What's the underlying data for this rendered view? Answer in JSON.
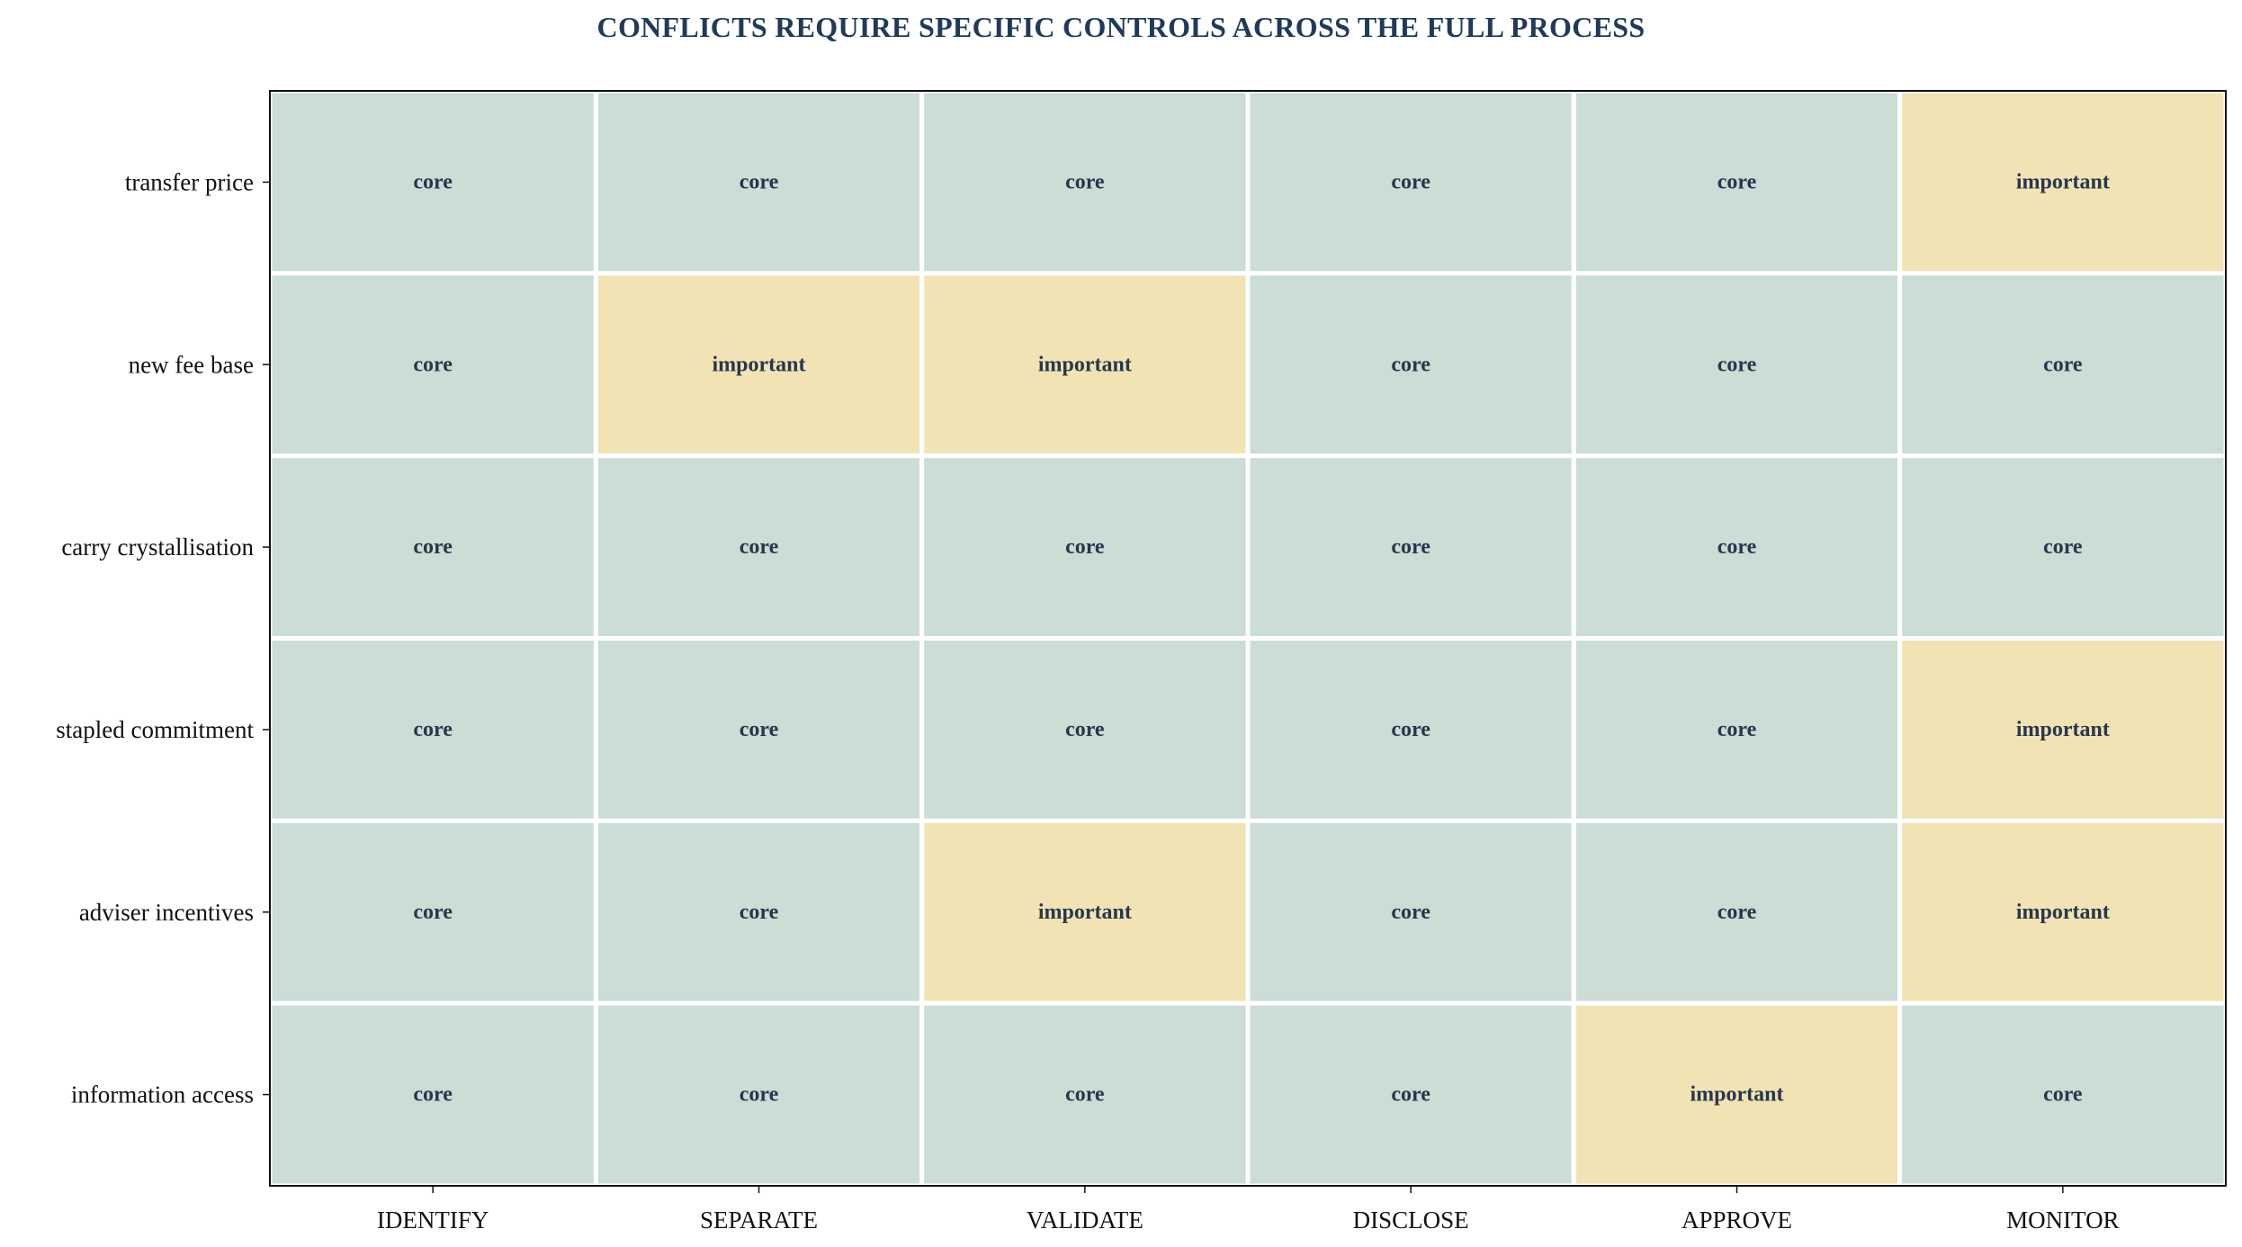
{
  "chart_data": {
    "type": "heatmap",
    "title": "CONFLICTS REQUIRE SPECIFIC CONTROLS ACROSS THE FULL PROCESS",
    "xlabel": "",
    "ylabel": "",
    "columns": [
      "IDENTIFY",
      "SEPARATE",
      "VALIDATE",
      "DISCLOSE",
      "APPROVE",
      "MONITOR"
    ],
    "rows": [
      "transfer price",
      "new fee base",
      "carry crystallisation",
      "stapled commitment",
      "adviser incentives",
      "information access"
    ],
    "values": [
      [
        "core",
        "core",
        "core",
        "core",
        "core",
        "important"
      ],
      [
        "core",
        "important",
        "important",
        "core",
        "core",
        "core"
      ],
      [
        "core",
        "core",
        "core",
        "core",
        "core",
        "core"
      ],
      [
        "core",
        "core",
        "core",
        "core",
        "core",
        "important"
      ],
      [
        "core",
        "core",
        "important",
        "core",
        "core",
        "important"
      ],
      [
        "core",
        "core",
        "core",
        "core",
        "important",
        "core"
      ]
    ],
    "category_colors": {
      "core": "#cbddd4",
      "important": "#f2e3b5"
    },
    "grid": true,
    "legend": "none"
  },
  "colors": {
    "title": "#1f3a5a",
    "cell_text": "#27384d",
    "cell_border": "#ffffff",
    "frame": "#111111"
  }
}
